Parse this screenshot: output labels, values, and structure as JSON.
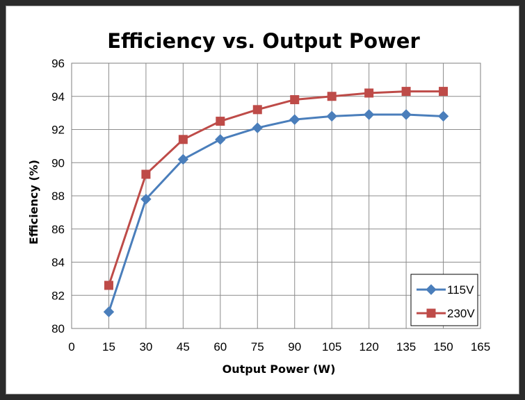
{
  "chart_data": {
    "type": "line",
    "title": "Efficiency  vs.  Output Power",
    "xlabel": "Output Power (W)",
    "ylabel": "Efficiency (%)",
    "xlim": [
      0,
      165
    ],
    "ylim": [
      80,
      96
    ],
    "x_ticks": [
      0,
      15,
      30,
      45,
      60,
      75,
      90,
      105,
      120,
      135,
      150,
      165
    ],
    "y_ticks": [
      80,
      82,
      84,
      86,
      88,
      90,
      92,
      94,
      96
    ],
    "grid": true,
    "legend_position": "bottom-right",
    "x": [
      15,
      30,
      45,
      60,
      75,
      90,
      105,
      120,
      135,
      150
    ],
    "series": [
      {
        "name": "115V",
        "color": "#4a7ebb",
        "marker": "diamond",
        "values": [
          81.0,
          87.8,
          90.2,
          91.4,
          92.1,
          92.6,
          92.8,
          92.9,
          92.9,
          92.8
        ]
      },
      {
        "name": "230V",
        "color": "#be4b48",
        "marker": "square",
        "values": [
          82.6,
          89.3,
          91.4,
          92.5,
          93.2,
          93.8,
          94.0,
          94.2,
          94.3,
          94.3
        ]
      }
    ]
  }
}
